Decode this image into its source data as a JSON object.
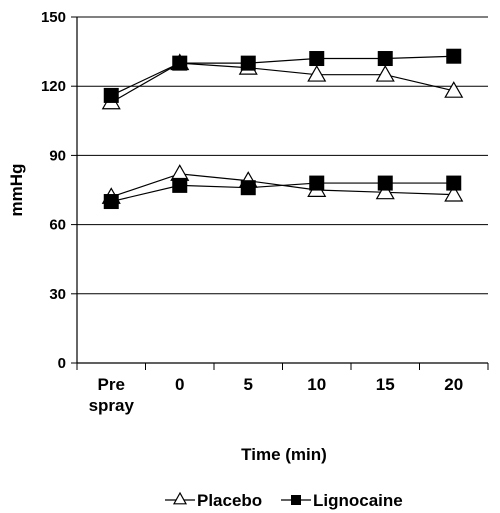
{
  "chart_data": {
    "type": "line",
    "title": "",
    "xlabel": "Time (min)",
    "ylabel": "mmHg",
    "categories": [
      [
        "Pre",
        "spray"
      ],
      [
        "0"
      ],
      [
        "5"
      ],
      [
        "10"
      ],
      [
        "15"
      ],
      [
        "20"
      ]
    ],
    "ylim": [
      0,
      150
    ],
    "yticks": [
      0,
      30,
      60,
      90,
      120,
      150
    ],
    "grid": "horizontal",
    "legend_position": "bottom",
    "series": [
      {
        "name": "Placebo",
        "group": "systolic",
        "marker": "open-triangle",
        "values": [
          113,
          130,
          128,
          125,
          125,
          118
        ]
      },
      {
        "name": "Lignocaine",
        "group": "systolic",
        "marker": "filled-square",
        "values": [
          116,
          130,
          130,
          132,
          132,
          133
        ]
      },
      {
        "name": "Placebo",
        "group": "diastolic",
        "marker": "open-triangle",
        "values": [
          72,
          82,
          79,
          75,
          74,
          73
        ]
      },
      {
        "name": "Lignocaine",
        "group": "diastolic",
        "marker": "filled-square",
        "values": [
          70,
          77,
          76,
          78,
          78,
          78
        ]
      }
    ],
    "legend": [
      {
        "label": "Placebo",
        "marker": "open-triangle"
      },
      {
        "label": "Lignocaine",
        "marker": "filled-square"
      }
    ]
  }
}
